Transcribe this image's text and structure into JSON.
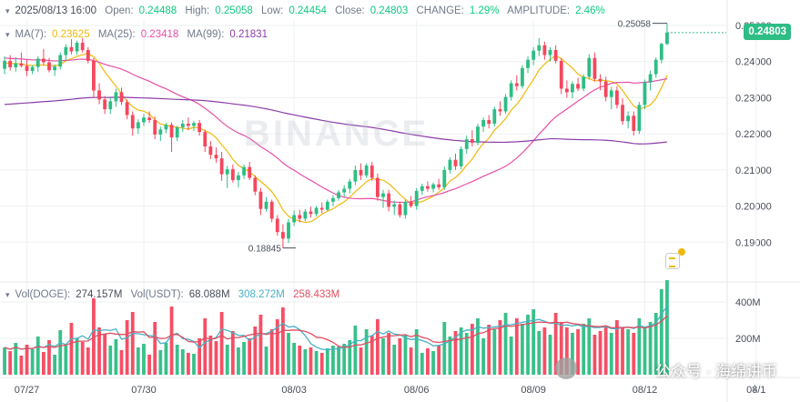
{
  "header": {
    "datetime": "2025/08/13 16:00",
    "open_label": "Open:",
    "open": "0.24488",
    "high_label": "High:",
    "high": "0.25058",
    "low_label": "Low:",
    "low": "0.24454",
    "close_label": "Close:",
    "close": "0.24803",
    "change_label": "CHANGE:",
    "change": "1.29%",
    "amplitude_label": "AMPLITUDE:",
    "amplitude": "2.46%"
  },
  "ma_legend": {
    "ma7_label": "MA(7):",
    "ma7": "0.23625",
    "ma25_label": "MA(25):",
    "ma25": "0.23418",
    "ma99_label": "MA(99):",
    "ma99": "0.21831"
  },
  "vol_legend": {
    "vol_doge_label": "Vol(DOGE):",
    "vol_doge": "274.157M",
    "vol_usdt_label": "Vol(USDT):",
    "vol_usdt": "68.088M",
    "usdt_ma1": "308.272M",
    "usdt_ma2": "258.433M"
  },
  "price_tag": "0.24803",
  "high_marker": "0.25058",
  "low_marker": "0.18845",
  "watermark": "BINANCE",
  "wechat_text": "公众号 · 海绵讲币",
  "colors": {
    "up": "#2ebd85",
    "down": "#f6465d",
    "ma7": "#f0b90b",
    "ma25": "#e64fa7",
    "ma99": "#8a3da8",
    "grid": "#eef0f2",
    "axis_text": "#474d57"
  },
  "chart_data": {
    "type": "candlestick",
    "ylim": [
      0.1795,
      0.2515
    ],
    "y_ticks": [
      "0.25000",
      "0.24000",
      "0.23000",
      "0.22000",
      "0.21000",
      "0.20000",
      "0.19000"
    ],
    "y_tick_values": [
      0.25,
      0.24,
      0.23,
      0.22,
      0.21,
      0.2,
      0.19
    ],
    "x_labels": [
      "07/27",
      "07/30",
      "08/03",
      "08/06",
      "08/09",
      "08/12",
      "08/1"
    ],
    "x_label_candle_index": [
      4,
      25,
      52,
      74,
      95,
      115,
      135
    ],
    "volume_ticks": [
      "400M",
      "200M"
    ],
    "volume_tick_values": [
      400,
      200
    ],
    "volume_max": 500,
    "candles": [
      [
        0.238,
        0.2415,
        0.2365,
        0.2402
      ],
      [
        0.2402,
        0.2418,
        0.2375,
        0.2384
      ],
      [
        0.2384,
        0.2412,
        0.2372,
        0.2395
      ],
      [
        0.2395,
        0.2425,
        0.2384,
        0.2388
      ],
      [
        0.2388,
        0.2405,
        0.236,
        0.2374
      ],
      [
        0.2374,
        0.239,
        0.2365,
        0.2385
      ],
      [
        0.2385,
        0.2415,
        0.2372,
        0.2408
      ],
      [
        0.2408,
        0.2435,
        0.239,
        0.2398
      ],
      [
        0.2398,
        0.241,
        0.237,
        0.2376
      ],
      [
        0.2376,
        0.2392,
        0.236,
        0.2386
      ],
      [
        0.2386,
        0.2425,
        0.2378,
        0.2418
      ],
      [
        0.2418,
        0.2448,
        0.2402,
        0.244
      ],
      [
        0.244,
        0.2462,
        0.242,
        0.2428
      ],
      [
        0.2428,
        0.2458,
        0.2418,
        0.2452
      ],
      [
        0.2452,
        0.2465,
        0.2425,
        0.2432
      ],
      [
        0.2432,
        0.244,
        0.2395,
        0.2402
      ],
      [
        0.2402,
        0.241,
        0.23,
        0.232
      ],
      [
        0.232,
        0.234,
        0.2282,
        0.2295
      ],
      [
        0.2295,
        0.2305,
        0.2255,
        0.2268
      ],
      [
        0.2268,
        0.23,
        0.2255,
        0.229
      ],
      [
        0.229,
        0.2325,
        0.2275,
        0.2315
      ],
      [
        0.2315,
        0.2328,
        0.228,
        0.2288
      ],
      [
        0.2288,
        0.2295,
        0.224,
        0.2252
      ],
      [
        0.2252,
        0.2262,
        0.2195,
        0.2215
      ],
      [
        0.2215,
        0.224,
        0.22,
        0.2232
      ],
      [
        0.2232,
        0.2255,
        0.2222,
        0.2245
      ],
      [
        0.2245,
        0.2262,
        0.223,
        0.2238
      ],
      [
        0.2238,
        0.2248,
        0.2185,
        0.2198
      ],
      [
        0.2198,
        0.222,
        0.218,
        0.2212
      ],
      [
        0.2212,
        0.223,
        0.2202,
        0.2225
      ],
      [
        0.2225,
        0.2232,
        0.215,
        0.219
      ],
      [
        0.219,
        0.2222,
        0.218,
        0.2218
      ],
      [
        0.2218,
        0.2238,
        0.2205,
        0.2228
      ],
      [
        0.2228,
        0.2245,
        0.221,
        0.2222
      ],
      [
        0.2222,
        0.2235,
        0.2208,
        0.223
      ],
      [
        0.223,
        0.2238,
        0.2195,
        0.2205
      ],
      [
        0.2205,
        0.2212,
        0.215,
        0.2165
      ],
      [
        0.2165,
        0.218,
        0.213,
        0.2142
      ],
      [
        0.2142,
        0.2162,
        0.212,
        0.2132
      ],
      [
        0.2132,
        0.215,
        0.207,
        0.2088
      ],
      [
        0.2088,
        0.2112,
        0.205,
        0.2102
      ],
      [
        0.2102,
        0.2115,
        0.2065,
        0.2072
      ],
      [
        0.2072,
        0.2095,
        0.2052,
        0.2085
      ],
      [
        0.2085,
        0.2115,
        0.2075,
        0.2108
      ],
      [
        0.2108,
        0.2122,
        0.2072,
        0.2078
      ],
      [
        0.2078,
        0.2085,
        0.203,
        0.204
      ],
      [
        0.204,
        0.205,
        0.1975,
        0.1992
      ],
      [
        0.1992,
        0.2025,
        0.1985,
        0.2012
      ],
      [
        0.2012,
        0.2018,
        0.1955,
        0.1965
      ],
      [
        0.1965,
        0.1975,
        0.1918,
        0.1928
      ],
      [
        0.1928,
        0.195,
        0.1884,
        0.191
      ],
      [
        0.191,
        0.1965,
        0.1898,
        0.1955
      ],
      [
        0.1955,
        0.1988,
        0.1945,
        0.1975
      ],
      [
        0.1975,
        0.199,
        0.1955,
        0.1965
      ],
      [
        0.1965,
        0.1992,
        0.1958,
        0.1985
      ],
      [
        0.1985,
        0.1998,
        0.1968,
        0.1978
      ],
      [
        0.1978,
        0.2,
        0.1972,
        0.1995
      ],
      [
        0.1995,
        0.201,
        0.198,
        0.199
      ],
      [
        0.199,
        0.2018,
        0.1985,
        0.2012
      ],
      [
        0.2012,
        0.203,
        0.2,
        0.2022
      ],
      [
        0.2022,
        0.2045,
        0.2015,
        0.2038
      ],
      [
        0.2038,
        0.2058,
        0.2025,
        0.2048
      ],
      [
        0.2048,
        0.2075,
        0.2035,
        0.2068
      ],
      [
        0.2068,
        0.2112,
        0.2058,
        0.21
      ],
      [
        0.21,
        0.2118,
        0.2072,
        0.2085
      ],
      [
        0.2085,
        0.2118,
        0.2078,
        0.2112
      ],
      [
        0.2112,
        0.2122,
        0.207,
        0.2078
      ],
      [
        0.2078,
        0.209,
        0.2015,
        0.2025
      ],
      [
        0.2025,
        0.2045,
        0.1995,
        0.2035
      ],
      [
        0.2035,
        0.2045,
        0.1985,
        0.1998
      ],
      [
        0.1998,
        0.2015,
        0.1975,
        0.2005
      ],
      [
        0.2005,
        0.2012,
        0.1968,
        0.1975
      ],
      [
        0.1975,
        0.2018,
        0.1965,
        0.2012
      ],
      [
        0.2012,
        0.2028,
        0.1995,
        0.2
      ],
      [
        0.2,
        0.205,
        0.199,
        0.2042
      ],
      [
        0.2042,
        0.2062,
        0.203,
        0.2055
      ],
      [
        0.2055,
        0.2068,
        0.204,
        0.2048
      ],
      [
        0.2048,
        0.2065,
        0.2038,
        0.206
      ],
      [
        0.206,
        0.2075,
        0.2045,
        0.2052
      ],
      [
        0.2052,
        0.211,
        0.2045,
        0.21
      ],
      [
        0.21,
        0.2135,
        0.209,
        0.2128
      ],
      [
        0.2128,
        0.2145,
        0.21,
        0.211
      ],
      [
        0.211,
        0.2165,
        0.2102,
        0.2158
      ],
      [
        0.2158,
        0.2195,
        0.2145,
        0.2185
      ],
      [
        0.2185,
        0.221,
        0.2165,
        0.2175
      ],
      [
        0.2175,
        0.2228,
        0.2168,
        0.222
      ],
      [
        0.222,
        0.2245,
        0.2205,
        0.2238
      ],
      [
        0.2238,
        0.2252,
        0.2215,
        0.2228
      ],
      [
        0.2228,
        0.2275,
        0.222,
        0.2268
      ],
      [
        0.2268,
        0.229,
        0.225,
        0.2262
      ],
      [
        0.2262,
        0.231,
        0.2255,
        0.2302
      ],
      [
        0.2302,
        0.2348,
        0.2292,
        0.234
      ],
      [
        0.234,
        0.2362,
        0.232,
        0.2332
      ],
      [
        0.2332,
        0.239,
        0.2325,
        0.2382
      ],
      [
        0.2382,
        0.2415,
        0.2368,
        0.2405
      ],
      [
        0.2405,
        0.244,
        0.239,
        0.243
      ],
      [
        0.243,
        0.2465,
        0.2415,
        0.2445
      ],
      [
        0.2445,
        0.2455,
        0.2405,
        0.2418
      ],
      [
        0.2418,
        0.244,
        0.24,
        0.2432
      ],
      [
        0.2432,
        0.2445,
        0.2395,
        0.2402
      ],
      [
        0.2402,
        0.241,
        0.231,
        0.2325
      ],
      [
        0.2325,
        0.2348,
        0.23,
        0.2315
      ],
      [
        0.2315,
        0.2345,
        0.2298,
        0.2338
      ],
      [
        0.2338,
        0.2355,
        0.2318,
        0.2325
      ],
      [
        0.2325,
        0.2365,
        0.2318,
        0.2358
      ],
      [
        0.2358,
        0.242,
        0.235,
        0.241
      ],
      [
        0.241,
        0.2425,
        0.2345,
        0.2352
      ],
      [
        0.2352,
        0.2365,
        0.232,
        0.2345
      ],
      [
        0.2345,
        0.2358,
        0.229,
        0.2302
      ],
      [
        0.2302,
        0.233,
        0.2268,
        0.232
      ],
      [
        0.232,
        0.2332,
        0.227,
        0.228
      ],
      [
        0.228,
        0.2298,
        0.2225,
        0.2235
      ],
      [
        0.2235,
        0.2262,
        0.2215,
        0.225
      ],
      [
        0.225,
        0.2262,
        0.2195,
        0.2208
      ],
      [
        0.2208,
        0.2288,
        0.22,
        0.228
      ],
      [
        0.228,
        0.235,
        0.2268,
        0.2342
      ],
      [
        0.2342,
        0.2375,
        0.232,
        0.2365
      ],
      [
        0.2365,
        0.2412,
        0.2355,
        0.2405
      ],
      [
        0.2405,
        0.2452,
        0.2395,
        0.2449
      ],
      [
        0.2449,
        0.2506,
        0.2445,
        0.248
      ]
    ],
    "volumes": [
      150,
      130,
      175,
      105,
      165,
      140,
      210,
      125,
      190,
      110,
      245,
      160,
      285,
      200,
      180,
      150,
      420,
      260,
      225,
      160,
      195,
      135,
      300,
      345,
      150,
      170,
      110,
      290,
      135,
      175,
      375,
      165,
      140,
      120,
      115,
      200,
      310,
      215,
      185,
      345,
      165,
      240,
      150,
      180,
      200,
      265,
      330,
      155,
      250,
      305,
      370,
      230,
      175,
      160,
      140,
      150,
      130,
      120,
      145,
      160,
      155,
      170,
      190,
      270,
      150,
      250,
      215,
      305,
      200,
      230,
      165,
      200,
      220,
      150,
      250,
      120,
      145,
      130,
      160,
      290,
      210,
      240,
      260,
      230,
      280,
      310,
      200,
      275,
      250,
      300,
      340,
      210,
      310,
      280,
      330,
      360,
      240,
      260,
      220,
      340,
      290,
      260,
      230,
      250,
      280,
      310,
      220,
      240,
      270,
      230,
      300,
      260,
      250,
      230,
      310,
      260,
      290,
      340,
      470,
      520
    ],
    "ma": {
      "ma7": {
        "name": "MA(7)",
        "last": 0.23625
      },
      "ma25": {
        "name": "MA(25)",
        "last": 0.23418
      },
      "ma99": {
        "name": "MA(99)",
        "last": 0.21831
      }
    },
    "grid": true
  }
}
